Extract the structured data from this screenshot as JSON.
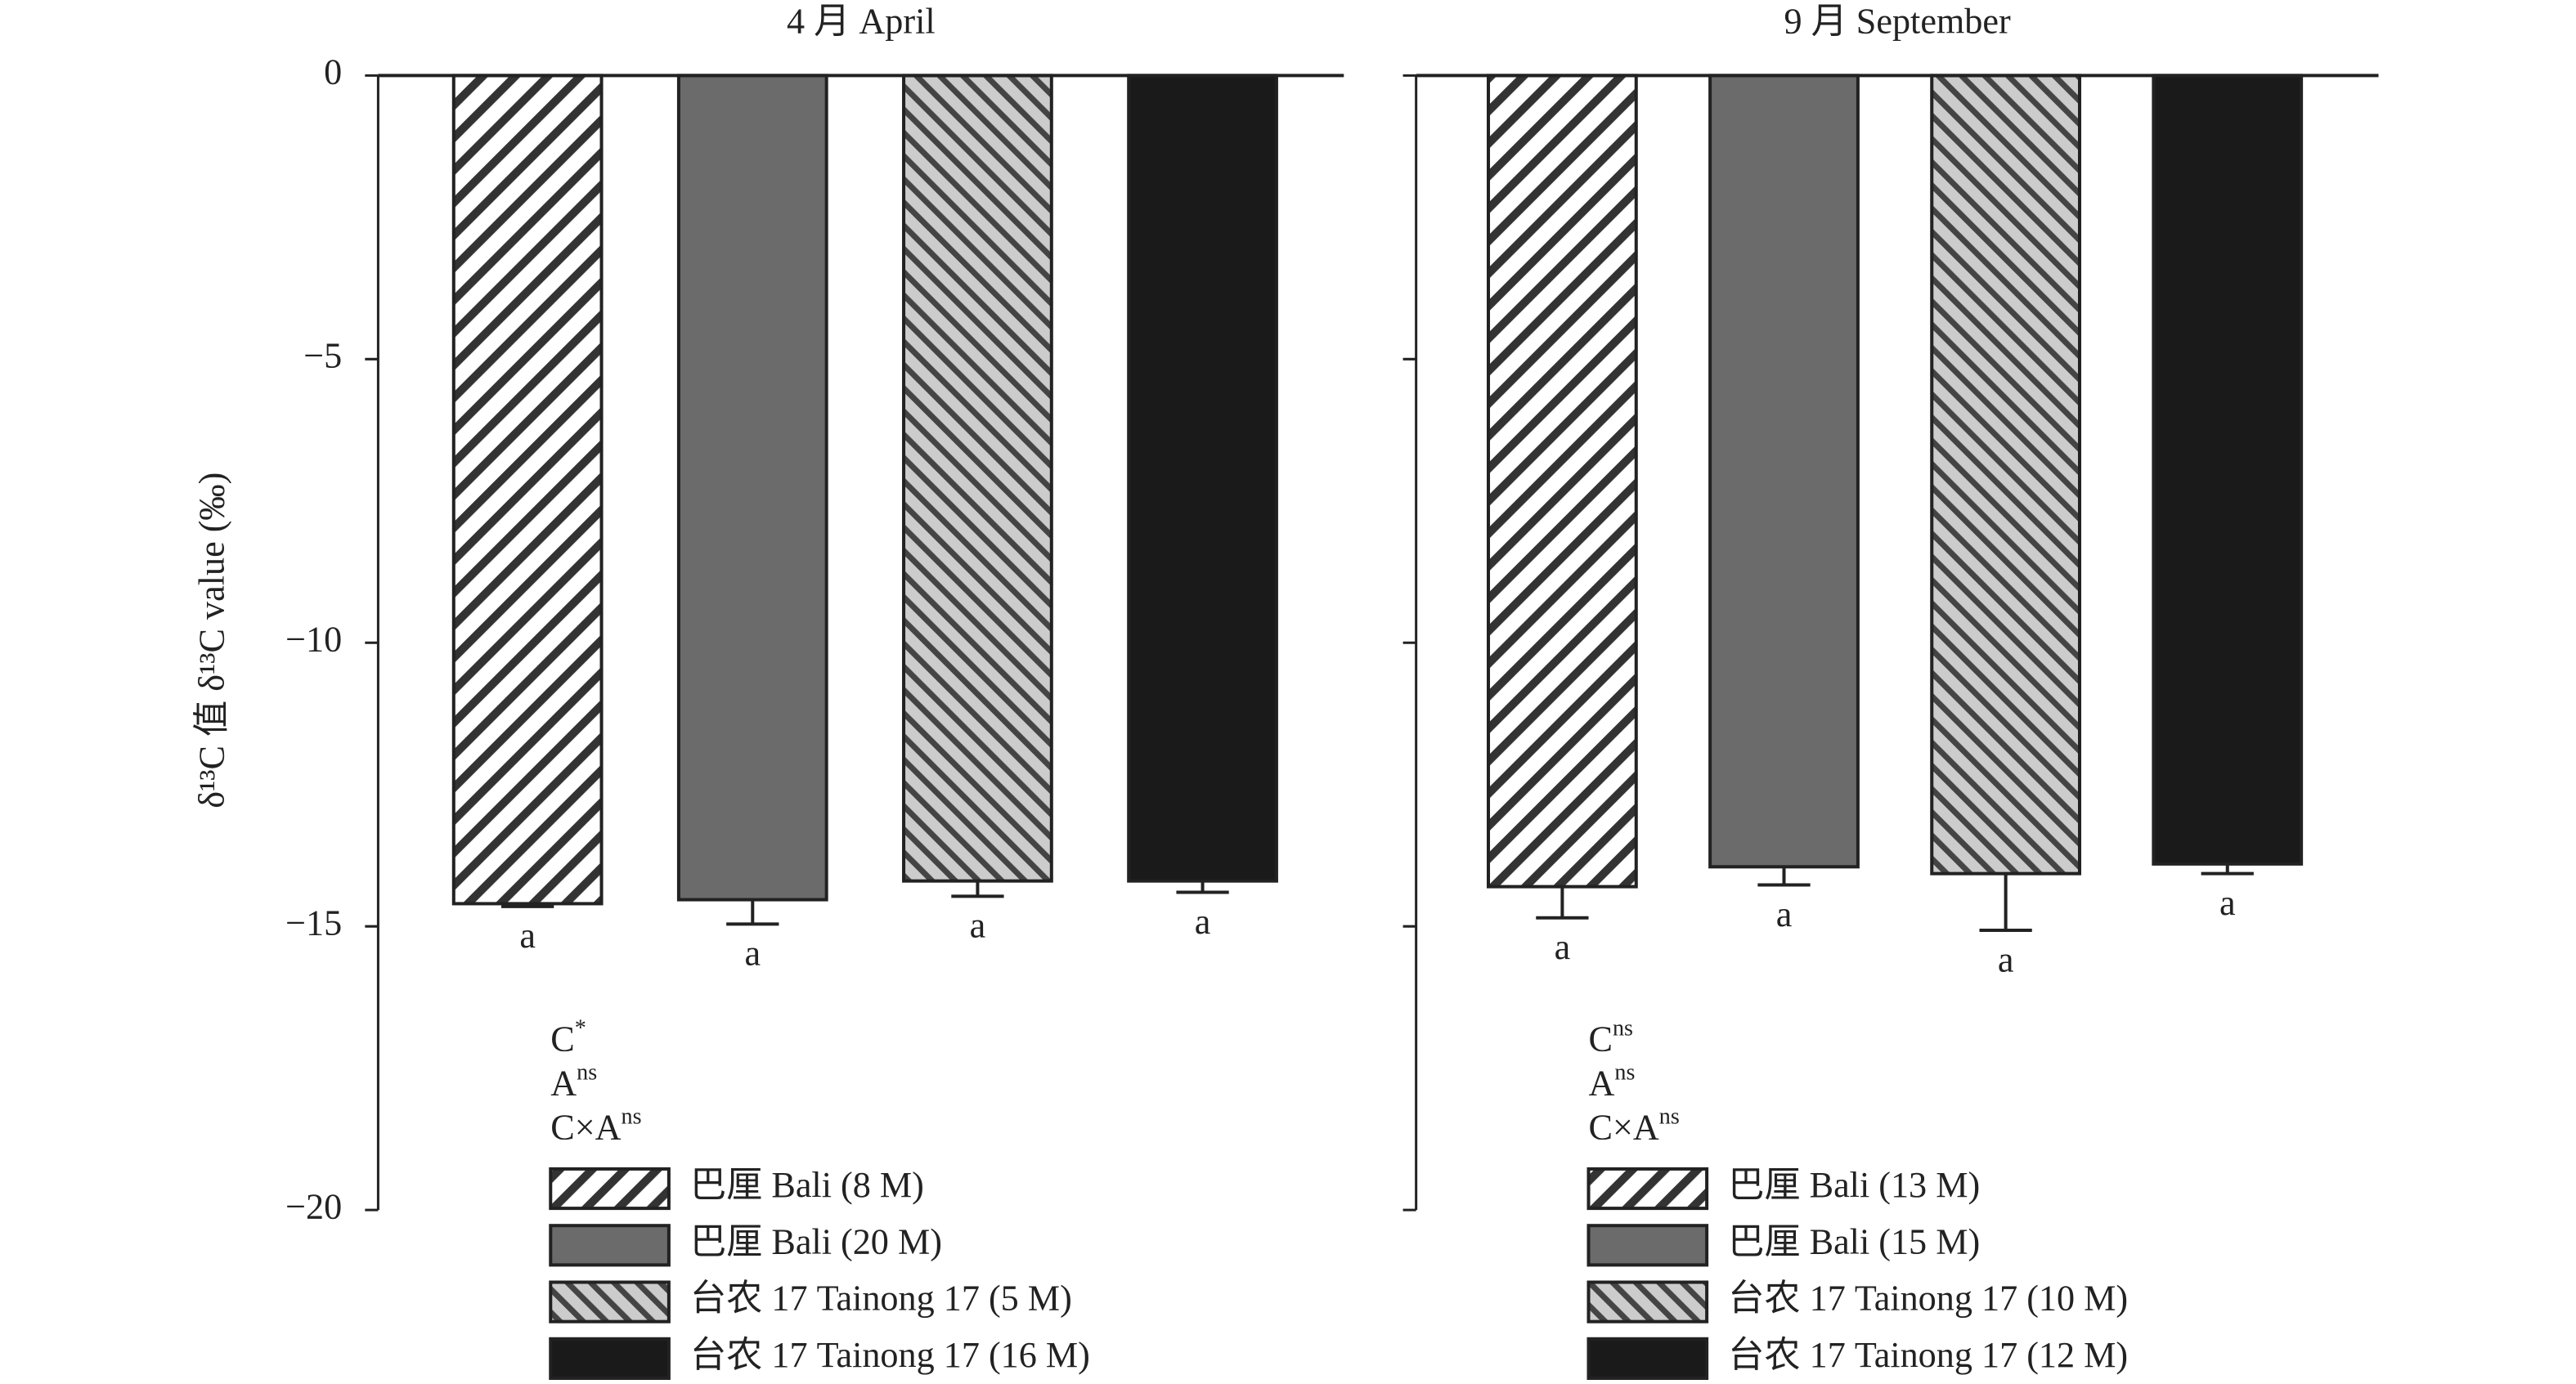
{
  "chart_data": [
    {
      "type": "bar",
      "title": "4 月 April",
      "ylabel": "δ¹³C 值 δ¹³C value (‰)",
      "categories": [
        "巴厘 Bali (8 M)",
        "巴厘 Bali (20 M)",
        "台农 17 Tainong 17 (5 M)",
        "台农 17 Tainong 17 (16 M)"
      ],
      "values": [
        -14.6,
        -14.53,
        -14.2,
        -14.2
      ],
      "errors": [
        0.05,
        0.43,
        0.27,
        0.2
      ],
      "letters": [
        "a",
        "a",
        "a",
        "a"
      ],
      "patterns": [
        "forward-hatch",
        "gray",
        "back-hatch",
        "black"
      ],
      "stats": [
        {
          "text": "C",
          "sup": "*"
        },
        {
          "text": "A",
          "sup": "ns"
        },
        {
          "text": "C×A",
          "sup": "ns"
        }
      ],
      "ylim": [
        -20,
        0
      ],
      "yticks": [
        {
          "value": 0,
          "label": "0"
        },
        {
          "value": -5,
          "label": "−5"
        },
        {
          "value": -10,
          "label": "−10"
        },
        {
          "value": -15,
          "label": "−15"
        },
        {
          "value": -20,
          "label": "−20"
        }
      ],
      "tick_labels": true
    },
    {
      "type": "bar",
      "title": "9 月 September",
      "categories": [
        "巴厘 Bali (13 M)",
        "巴厘 Bali (15 M)",
        "台农 17 Tainong 17 (10 M)",
        "台农 17 Tainong 17 (12 M)"
      ],
      "values": [
        -14.3,
        -13.95,
        -14.07,
        -13.9
      ],
      "errors": [
        0.55,
        0.32,
        1.0,
        0.17
      ],
      "letters": [
        "a",
        "a",
        "a",
        "a"
      ],
      "patterns": [
        "forward-hatch",
        "gray",
        "back-hatch",
        "black"
      ],
      "stats": [
        {
          "text": "C",
          "sup": "ns"
        },
        {
          "text": "A",
          "sup": "ns"
        },
        {
          "text": "C×A",
          "sup": "ns"
        }
      ],
      "ylim": [
        -20,
        0
      ],
      "yticks": [
        0,
        -5,
        -10,
        -15,
        -20
      ],
      "tick_labels": false
    }
  ]
}
